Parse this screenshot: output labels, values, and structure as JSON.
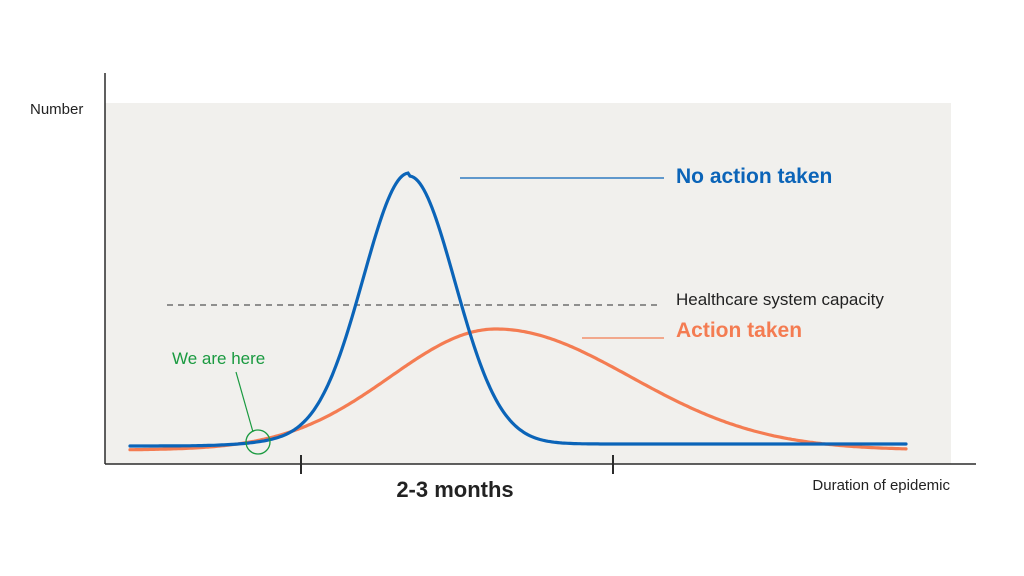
{
  "diagram": {
    "y_axis_label": "Number",
    "x_axis_label": "Duration of epidemic",
    "span_label": "2-3 months",
    "capacity_label": "Healthcare system capacity",
    "marker_label": "We are here",
    "no_action": {
      "label": "No action taken",
      "color": "#0b64b8"
    },
    "action": {
      "label": "Action taken",
      "color": "#f47c52"
    },
    "colors": {
      "panel": "#f1f0ed",
      "axis": "#2b2b2b",
      "capacity": "#555555",
      "marker": "#1a9a40",
      "text": "#222222"
    }
  }
}
